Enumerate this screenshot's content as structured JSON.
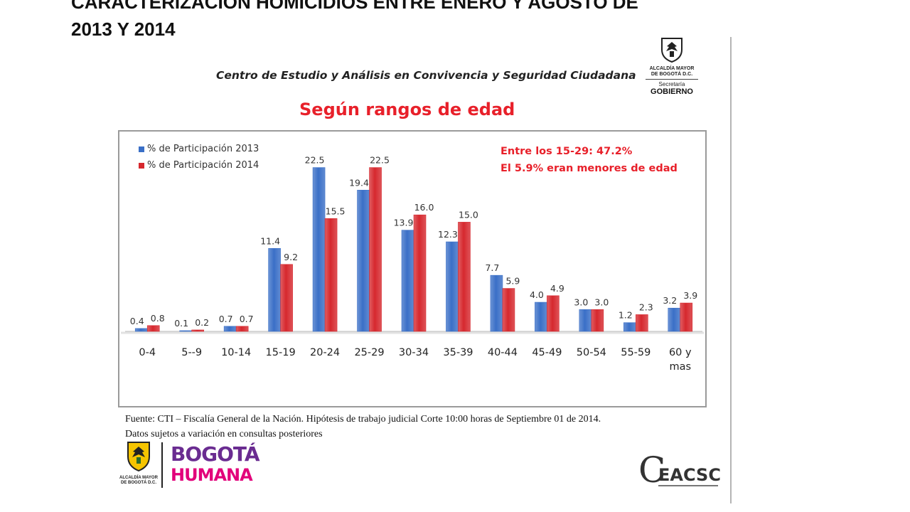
{
  "slide": {
    "title_lines": [
      "CARACTERIZACIÓN  HOMICIDIOS  ENTRE  ENERO Y AGOSTO  DE",
      "2013  Y  2014"
    ]
  },
  "header": {
    "center_name": "Centro de Estudio y Análisis en Convivencia y Seguridad Ciudadana",
    "gov_logo": {
      "line1": "ALCALDÍA MAYOR",
      "line2": "DE BOGOTÁ D.C.",
      "line3": "Secretaría",
      "line4": "GOBIERNO",
      "icon": "coat-of-arms-icon"
    }
  },
  "chart_data": {
    "type": "bar",
    "title": "Según rangos de edad",
    "categories": [
      "0-4",
      "5--9",
      "10-14",
      "15-19",
      "20-24",
      "25-29",
      "30-34",
      "35-39",
      "40-44",
      "45-49",
      "50-54",
      "55-59",
      "60 y mas"
    ],
    "category_lines": [
      [
        "0-4"
      ],
      [
        "5--9"
      ],
      [
        "10-14"
      ],
      [
        "15-19"
      ],
      [
        "20-24"
      ],
      [
        "25-29"
      ],
      [
        "30-34"
      ],
      [
        "35-39"
      ],
      [
        "40-44"
      ],
      [
        "45-49"
      ],
      [
        "50-54"
      ],
      [
        "55-59"
      ],
      [
        "60 y",
        "mas"
      ]
    ],
    "series": [
      {
        "name": "% de Participación 2013",
        "color": "#3a6fc7",
        "values": [
          0.4,
          0.1,
          0.7,
          11.4,
          22.5,
          19.4,
          13.9,
          12.3,
          7.7,
          4.0,
          3.0,
          1.2,
          3.2
        ]
      },
      {
        "name": "% de Participación 2014",
        "color": "#d6282e",
        "values": [
          0.8,
          0.2,
          0.7,
          9.2,
          15.5,
          22.5,
          16.0,
          15.0,
          5.9,
          4.9,
          3.0,
          2.3,
          3.9
        ]
      }
    ],
    "ylim": [
      0,
      25
    ],
    "grid": false,
    "legend": "top-left",
    "annotations": [
      "Entre los 15-29: 47.2%",
      "El 5.9% eran menores de edad"
    ]
  },
  "source": {
    "line1": "Fuente: CTI – Fiscalía General de la Nación.  Hipótesis de trabajo judicial  Corte 10:00 horas de  Septiembre 01 de  2014.",
    "line2": "Datos sujetos a variación en consultas posteriores"
  },
  "footer": {
    "crest_caption_1": "ALCALDÍA MAYOR",
    "crest_caption_2": "DE BOGOTÁ D.C.",
    "brand_line1": "BOGOTÁ",
    "brand_line2": "HUMANA",
    "center_logo": "CEACSC",
    "colors": {
      "brand_1": "#6a2c91",
      "brand_2": "#e2007a",
      "brand_3": "#f29100",
      "brand_4": "#009fe3"
    }
  }
}
